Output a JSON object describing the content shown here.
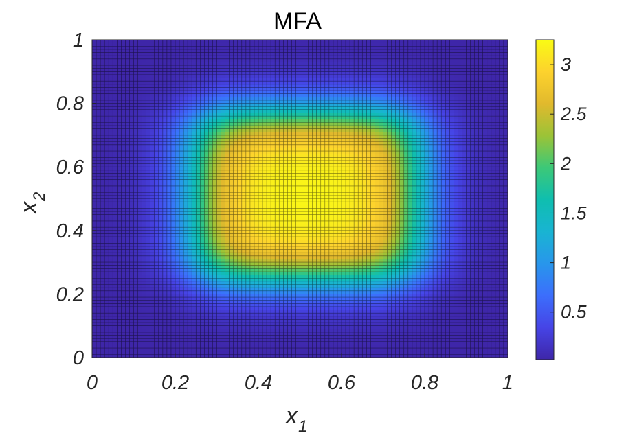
{
  "chart_data": {
    "type": "heatmap",
    "title": "MFA",
    "xlabel": "x",
    "xlabel_sub": "1",
    "ylabel": "x",
    "ylabel_sub": "2",
    "xlim": [
      0,
      1
    ],
    "ylim": [
      0,
      1
    ],
    "xticks": [
      0,
      0.2,
      0.4,
      0.6,
      0.8,
      1
    ],
    "xtick_labels": [
      "0",
      "0.2",
      "0.4",
      "0.6",
      "0.8",
      "1"
    ],
    "yticks": [
      0,
      0.2,
      0.4,
      0.6,
      0.8,
      1
    ],
    "ytick_labels": [
      "0",
      "0.2",
      "0.4",
      "0.6",
      "0.8",
      "1"
    ],
    "grid_resolution": 100,
    "field": {
      "description_of_shape": "smooth plateau",
      "x_plateau": [
        0.25,
        0.78
      ],
      "y_plateau": [
        0.25,
        0.77
      ],
      "edge_width": 0.045,
      "max_value": 3.25,
      "min_value": 0.02
    },
    "colorbar": {
      "colormap": "parula",
      "range": [
        0.02,
        3.25
      ],
      "ticks": [
        0.5,
        1,
        1.5,
        2,
        2.5,
        3
      ],
      "tick_labels": [
        "0.5",
        "1",
        "1.5",
        "2",
        "2.5",
        "3"
      ]
    }
  }
}
